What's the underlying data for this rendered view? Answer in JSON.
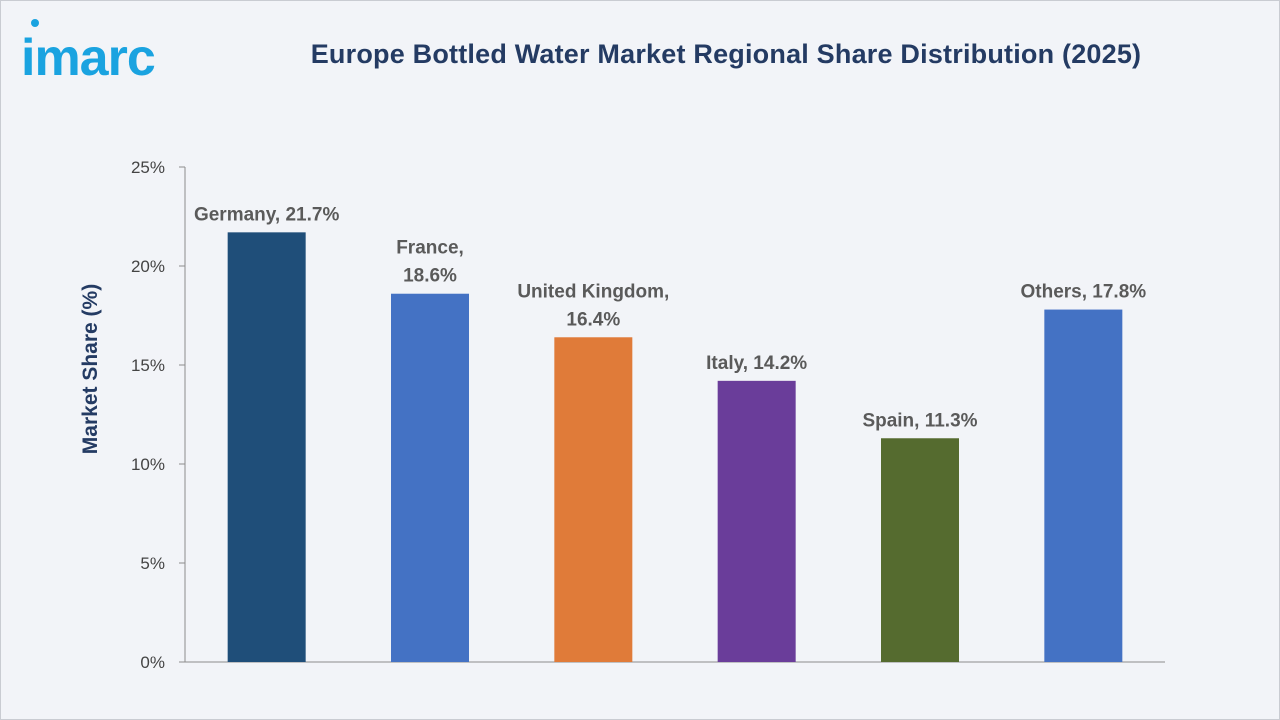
{
  "header": {
    "logo_text": "imarc",
    "title": "Europe Bottled Water Market Regional Share Distribution (2025)"
  },
  "colors": {
    "background": "#f2f4f8",
    "title": "#243b63",
    "logo": "#1aa3e0",
    "axis": "#8c8c8c"
  },
  "chart_data": {
    "type": "bar",
    "title": "Europe Bottled Water Market Regional Share Distribution (2025)",
    "xlabel": "",
    "ylabel": "Market Share (%)",
    "ylim": [
      0,
      25
    ],
    "yticks": [
      0,
      5,
      10,
      15,
      20,
      25
    ],
    "ytick_labels": [
      "0%",
      "5%",
      "10%",
      "15%",
      "20%",
      "25%"
    ],
    "grid": false,
    "legend": "none",
    "categories": [
      "Germany",
      "France",
      "United Kingdom",
      "Italy",
      "Spain",
      "Others"
    ],
    "values": [
      21.7,
      18.6,
      16.4,
      14.2,
      11.3,
      17.8
    ],
    "bar_colors": [
      "#1f4e79",
      "#4472c4",
      "#e07b39",
      "#6a3d9a",
      "#556b2f",
      "#4472c4"
    ],
    "data_labels": [
      [
        "Germany, 21.7%"
      ],
      [
        "France,",
        "18.6%"
      ],
      [
        "United Kingdom,",
        "16.4%"
      ],
      [
        "Italy, 14.2%"
      ],
      [
        "Spain, 11.3%"
      ],
      [
        "Others, 17.8%"
      ]
    ]
  }
}
